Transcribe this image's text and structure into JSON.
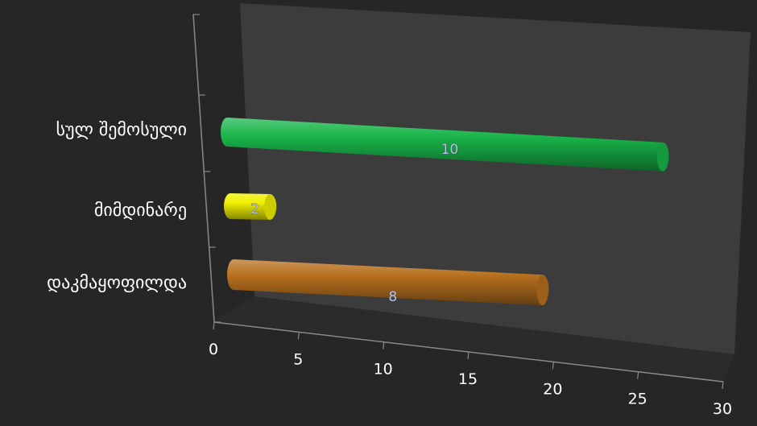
{
  "chart_data": {
    "type": "bar",
    "orientation": "horizontal",
    "style": "3d-cylinder",
    "categories": [
      "სულ შემოსული",
      "მიმდინარე",
      "დაკმაყოფილდა"
    ],
    "values": [
      10,
      2,
      8
    ],
    "bar_lengths_axis": [
      27.5,
      2.5,
      19.5
    ],
    "bar_colors": [
      "#19b54a",
      "#f0f000",
      "#b8701f"
    ],
    "xlim": [
      0,
      30
    ],
    "xticks": [
      0,
      5,
      10,
      15,
      20,
      25,
      30
    ],
    "title": "",
    "xlabel": "",
    "ylabel": "",
    "grid": false,
    "legend": "none"
  }
}
